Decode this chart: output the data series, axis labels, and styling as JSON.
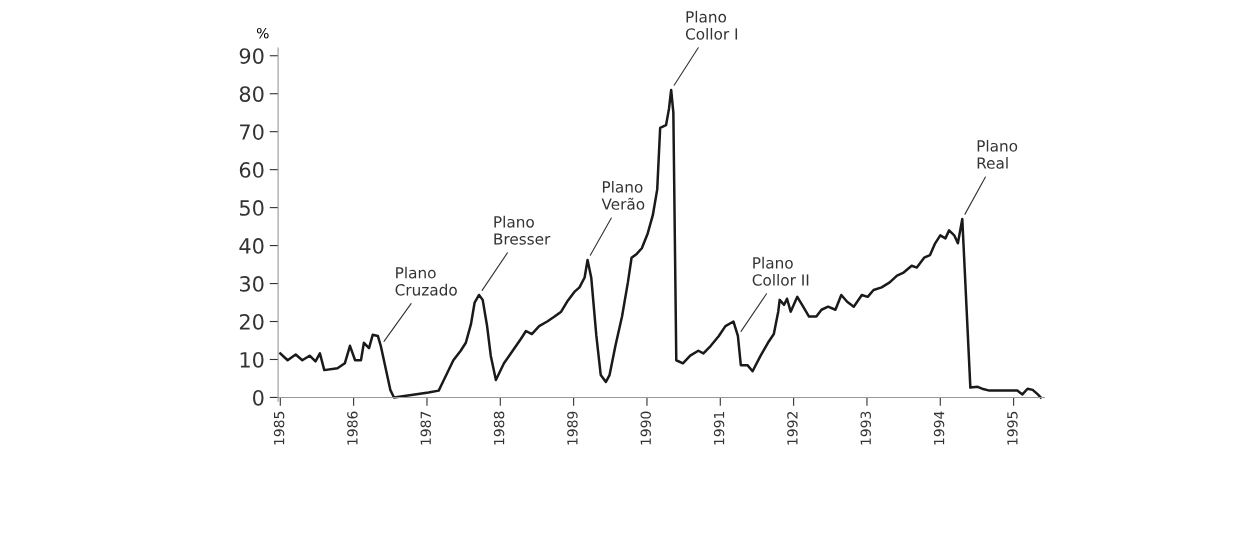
{
  "chart_data": {
    "type": "line",
    "ylabel": "%",
    "x": [
      1985.0,
      1985.1,
      1985.21,
      1985.3,
      1985.4,
      1985.48,
      1985.54,
      1985.6,
      1985.78,
      1985.88,
      1985.95,
      1986.02,
      1986.1,
      1986.14,
      1986.21,
      1986.26,
      1986.33,
      1986.37,
      1986.5,
      1986.55,
      1986.74,
      1987.02,
      1987.16,
      1987.23,
      1987.36,
      1987.46,
      1987.53,
      1987.6,
      1987.65,
      1987.71,
      1987.76,
      1987.82,
      1987.87,
      1987.94,
      1988.05,
      1988.19,
      1988.28,
      1988.35,
      1988.43,
      1988.53,
      1988.64,
      1988.74,
      1988.83,
      1988.91,
      1989.01,
      1989.08,
      1989.15,
      1989.19,
      1989.24,
      1989.31,
      1989.37,
      1989.44,
      1989.49,
      1989.57,
      1989.66,
      1989.74,
      1989.79,
      1989.86,
      1989.93,
      1990.01,
      1990.08,
      1990.14,
      1990.18,
      1990.26,
      1990.3,
      1990.33,
      1990.36,
      1990.4,
      1990.49,
      1990.59,
      1990.7,
      1990.77,
      1990.87,
      1990.98,
      1991.07,
      1991.18,
      1991.24,
      1991.28,
      1991.37,
      1991.44,
      1991.55,
      1991.65,
      1991.73,
      1991.79,
      1991.81,
      1991.87,
      1991.91,
      1991.96,
      1992.05,
      1992.13,
      1992.21,
      1992.31,
      1992.38,
      1992.47,
      1992.57,
      1992.65,
      1992.73,
      1992.82,
      1992.93,
      1993.01,
      1993.09,
      1993.2,
      1993.31,
      1993.41,
      1993.5,
      1993.61,
      1993.68,
      1993.78,
      1993.86,
      1993.93,
      1994.0,
      1994.07,
      1994.12,
      1994.19,
      1994.24,
      1994.3,
      1994.41,
      1994.51,
      1994.57,
      1994.67,
      1994.85,
      1994.99,
      1995.05,
      1995.12,
      1995.19,
      1995.26,
      1995.33,
      1995.37
    ],
    "series": [
      {
        "color": "#1a1a1a",
        "values": [
          11.6,
          9.8,
          11.3,
          9.8,
          11,
          9.5,
          11.6,
          7.2,
          7.7,
          9,
          13.6,
          9.8,
          9.8,
          14.4,
          13,
          16.5,
          16.2,
          13.6,
          2,
          0,
          0.5,
          1.3,
          1.8,
          4.6,
          9.8,
          12.3,
          14.4,
          19.3,
          25,
          27,
          25.7,
          18.8,
          11,
          4.6,
          9,
          12.9,
          15.4,
          17.5,
          16.7,
          18.8,
          20,
          21.3,
          22.6,
          25.2,
          27.8,
          29,
          31.6,
          36.2,
          31.6,
          16.2,
          5.9,
          4.1,
          5.9,
          13.6,
          21.3,
          30.3,
          36.8,
          37.8,
          39.3,
          43.2,
          48,
          54.8,
          71,
          71.7,
          76,
          81,
          75,
          9.8,
          9,
          11,
          12.3,
          11.6,
          13.6,
          16.2,
          18.8,
          20,
          16.2,
          8.5,
          8.5,
          6.9,
          11,
          14.4,
          16.7,
          22.6,
          25.7,
          24.4,
          26,
          22.6,
          26.5,
          23.9,
          21.3,
          21.3,
          23.1,
          23.9,
          23.1,
          27,
          25.2,
          23.9,
          27,
          26.5,
          28.3,
          29,
          30.3,
          32.1,
          32.9,
          34.7,
          34.2,
          36.8,
          37.5,
          40.6,
          42.7,
          41.9,
          44,
          42.7,
          40.6,
          47,
          2.6,
          2.8,
          2.3,
          1.8,
          1.8,
          1.8,
          1.8,
          0.8,
          2.3,
          2,
          0.8,
          0
        ]
      }
    ],
    "xlim": [
      1984.97,
      1995.42
    ],
    "xticks": [
      1985,
      1986,
      1987,
      1988,
      1989,
      1990,
      1991,
      1992,
      1993,
      1994,
      1995
    ],
    "ylim": [
      -1,
      92
    ],
    "yticks": [
      0,
      10,
      20,
      30,
      40,
      50,
      60,
      70,
      80,
      90
    ],
    "annotations": [
      {
        "text": "Plano\nCruzado",
        "x": 1986.37,
        "y": 13.6
      },
      {
        "text": "Plano\nBresser",
        "x": 1987.71,
        "y": 27
      },
      {
        "text": "Plano\nVerão",
        "x": 1989.19,
        "y": 36.2
      },
      {
        "text": "Plano\nCollor I",
        "x": 1990.33,
        "y": 81
      },
      {
        "text": "Plano\nCollor II",
        "x": 1991.24,
        "y": 16.2
      },
      {
        "text": "Plano\nReal",
        "x": 1994.3,
        "y": 47
      }
    ],
    "grid": false,
    "marker": "none",
    "line_style": "solid"
  }
}
